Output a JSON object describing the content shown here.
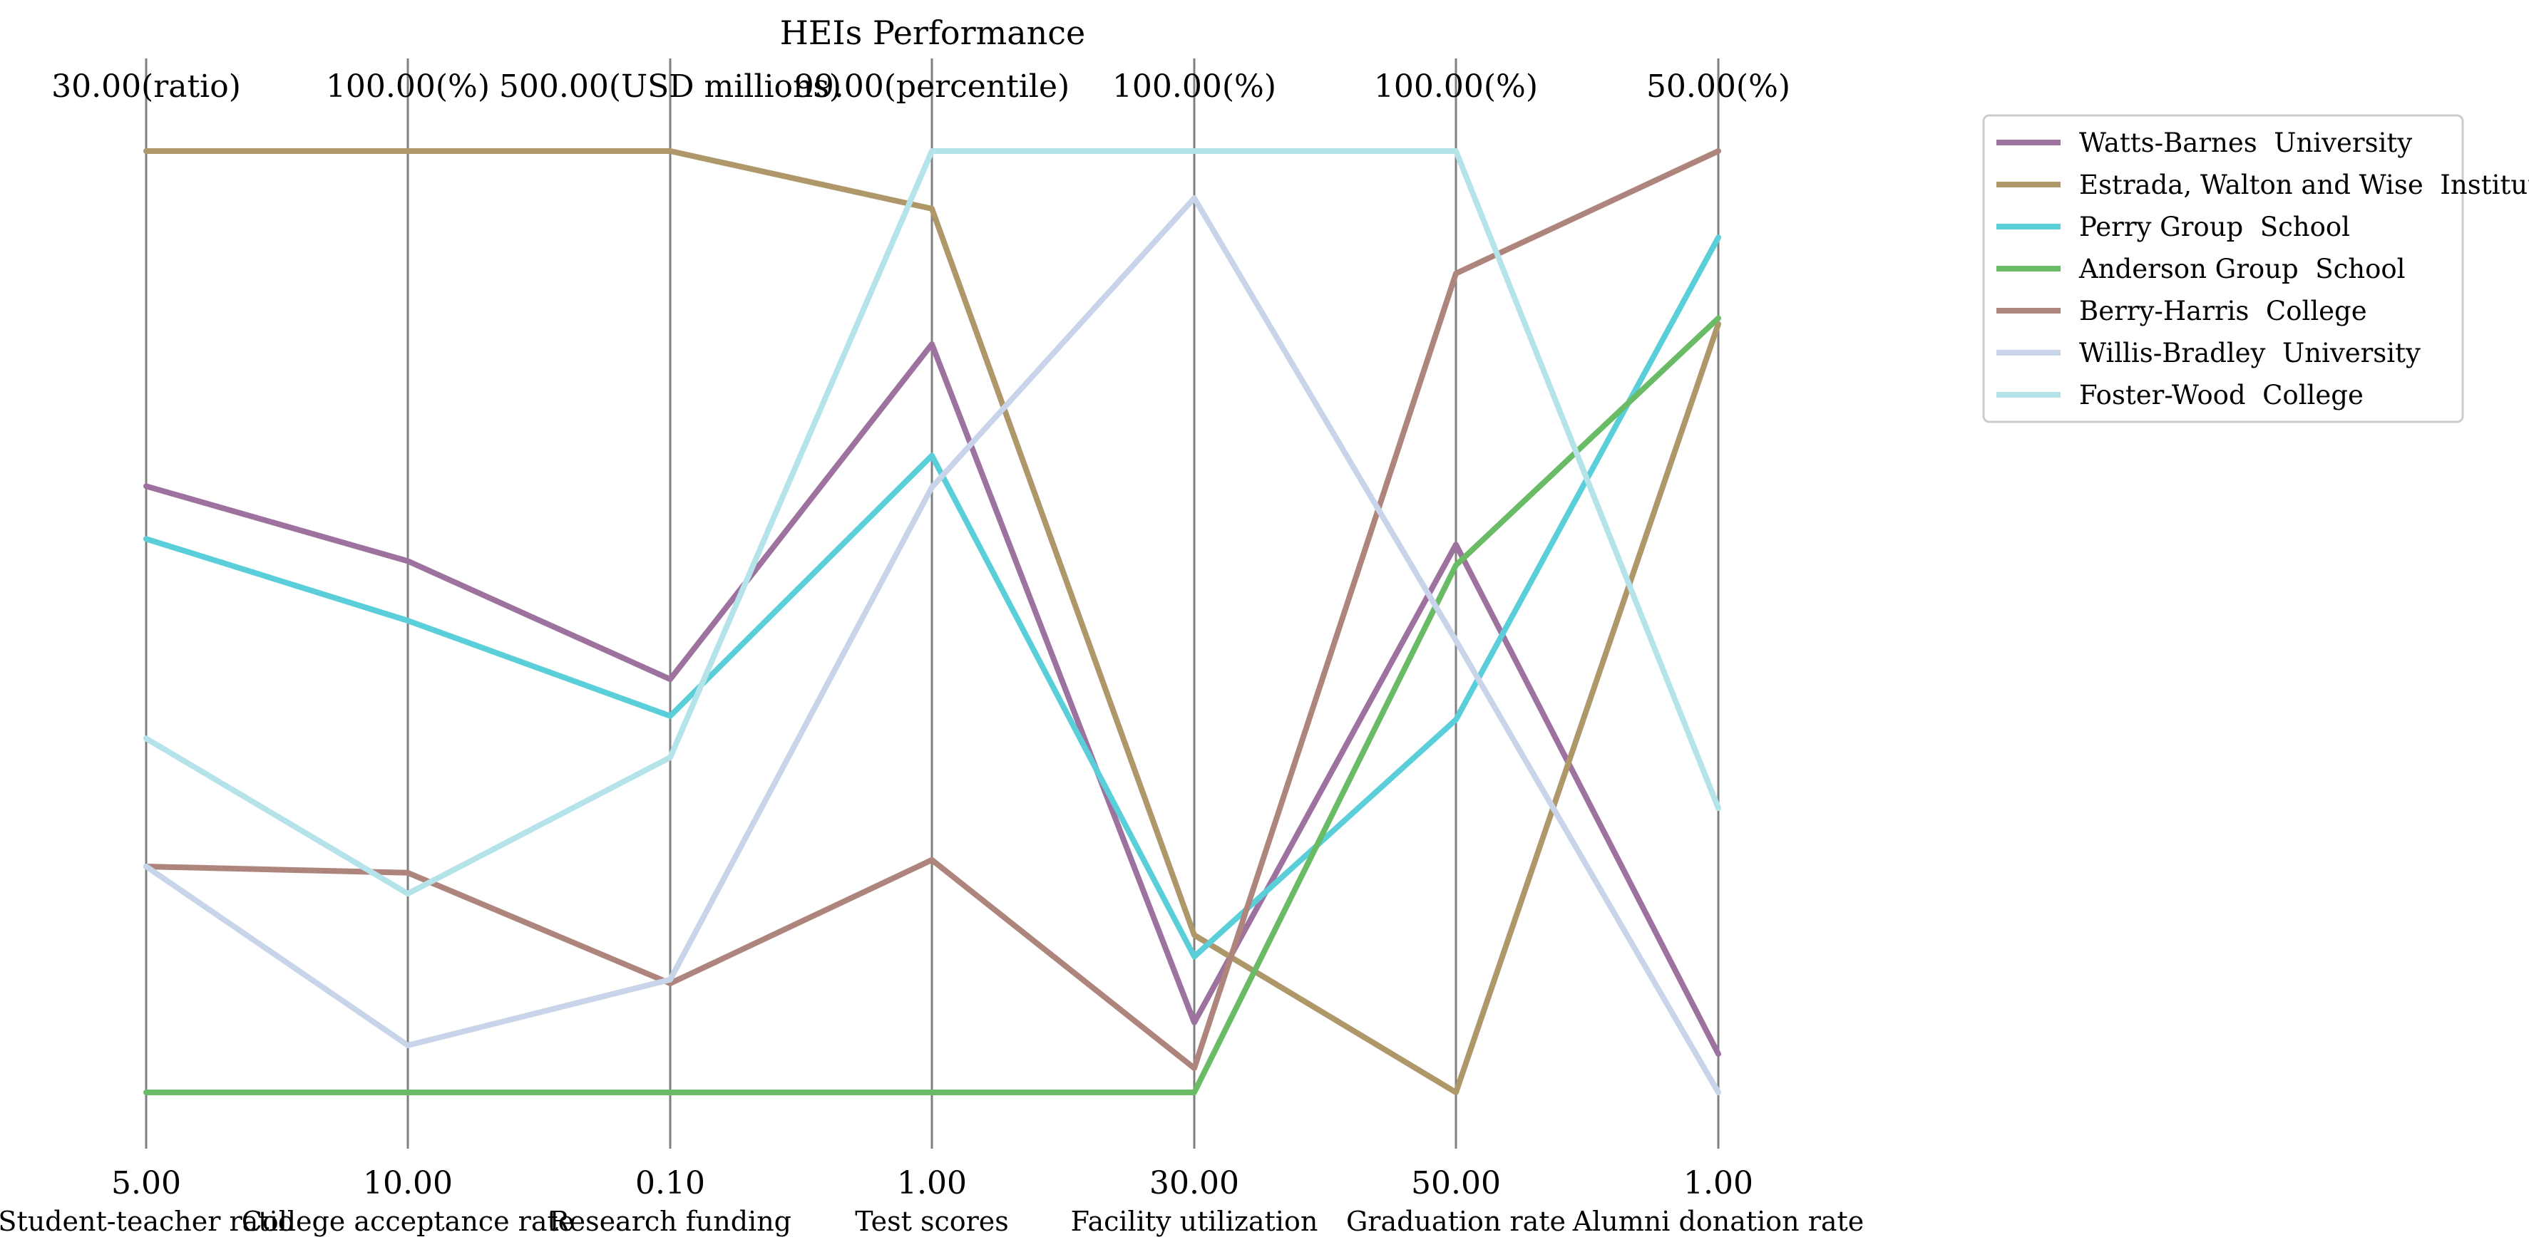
{
  "chart_data": {
    "type": "parallel_coordinates",
    "title": "HEIs Performance",
    "axes": [
      {
        "label": "Student-teacher ratio",
        "min": 5.0,
        "max": 30.0,
        "min_label": "5.00",
        "max_label": "30.00(ratio)"
      },
      {
        "label": "College acceptance rate",
        "min": 10.0,
        "max": 100.0,
        "min_label": "10.00",
        "max_label": "100.00(%)"
      },
      {
        "label": "Research funding",
        "min": 0.1,
        "max": 500.0,
        "min_label": "0.10",
        "max_label": "500.00(USD millions)"
      },
      {
        "label": "Test scores",
        "min": 1.0,
        "max": 99.0,
        "min_label": "1.00",
        "max_label": "99.00(percentile)"
      },
      {
        "label": "Facility utilization",
        "min": 30.0,
        "max": 100.0,
        "min_label": "30.00",
        "max_label": "100.00(%)"
      },
      {
        "label": "Graduation rate",
        "min": 50.0,
        "max": 100.0,
        "min_label": "50.00",
        "max_label": "100.00(%)"
      },
      {
        "label": "Alumni donation rate",
        "min": 1.0,
        "max": 50.0,
        "min_label": "1.00",
        "max_label": "50.00(%)"
      }
    ],
    "series": [
      {
        "name": "Watts-Barnes  University",
        "color": "#9e729e",
        "values": [
          21.1,
          60.8,
          219.5,
          78.9,
          35.2,
          79.1,
          3.0
        ]
      },
      {
        "name": "Estrada, Walton and Wise  Institute",
        "color": "#ae9769",
        "values": [
          30.0,
          100.0,
          500.0,
          93.0,
          41.7,
          50.0,
          41.0
        ]
      },
      {
        "name": "Perry Group  School",
        "color": "#5bcfd9",
        "values": [
          19.7,
          55.1,
          200.0,
          67.3,
          40.1,
          69.8,
          45.5
        ]
      },
      {
        "name": "Anderson Group  School",
        "color": "#6abb65",
        "values": [
          5.0,
          10.0,
          0.1,
          1.0,
          30.0,
          78.0,
          41.3
        ]
      },
      {
        "name": "Berry-Harris  College",
        "color": "#ae857d",
        "values": [
          11.0,
          31.0,
          58.0,
          25.2,
          31.8,
          93.5,
          50.0
        ]
      },
      {
        "name": "Willis-Bradley  University",
        "color": "#c8d4e9",
        "values": [
          11.0,
          14.5,
          60.0,
          64.0,
          96.5,
          74.0,
          1.0
        ]
      },
      {
        "name": "Foster-Wood  College",
        "color": "#b4e3ea",
        "values": [
          14.4,
          29.0,
          178.0,
          99.0,
          100.0,
          100.0,
          15.8
        ]
      }
    ],
    "legend_position": "top-right",
    "grid": false
  }
}
